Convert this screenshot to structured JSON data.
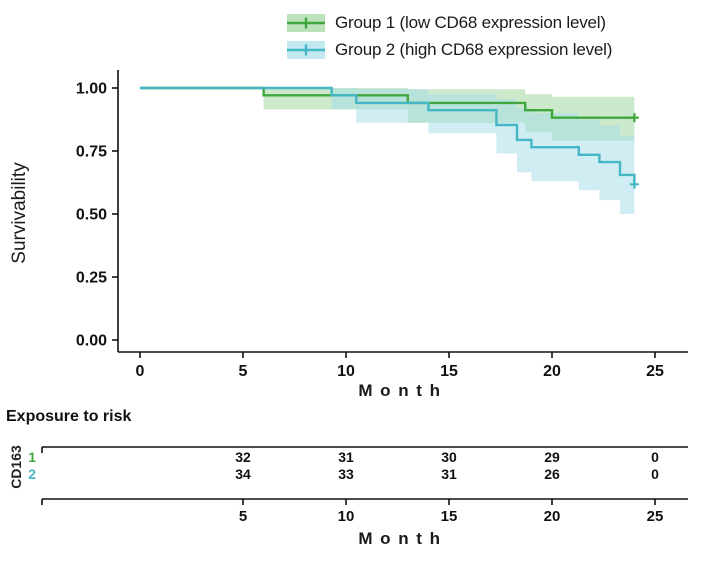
{
  "chart_data": {
    "type": "line",
    "subtype": "kaplan-meier-step-with-confidence-bands",
    "title": "",
    "xlabel": "Month",
    "ylabel": "Survivability",
    "xlim": [
      0,
      25
    ],
    "ylim": [
      0,
      1
    ],
    "grid": false,
    "legend_position": "top",
    "x_ticks": [
      0,
      5,
      10,
      15,
      20,
      25
    ],
    "y_ticks": [
      {
        "v": 1.0,
        "label": "1.00"
      },
      {
        "v": 0.75,
        "label": "0.75"
      },
      {
        "v": 0.5,
        "label": "0.50"
      },
      {
        "v": 0.25,
        "label": "0.25"
      },
      {
        "v": 0.0,
        "label": "0.00"
      }
    ],
    "series": [
      {
        "name": "group-1",
        "label": "Group 1 (low CD68 expression level)",
        "color": "#3fa73c",
        "band_color": "#8fce8f",
        "band_opacity": 0.45,
        "end": 24,
        "steps": [
          [
            0,
            1.0
          ],
          [
            6,
            0.971
          ],
          [
            13,
            0.941
          ],
          [
            18.7,
            0.912
          ],
          [
            20,
            0.882
          ]
        ],
        "censors": [
          [
            24,
            0.882
          ]
        ],
        "band": [
          {
            "t": 6,
            "lo": 0.915,
            "hi": 1.0
          },
          {
            "t": 13,
            "lo": 0.862,
            "hi": 0.995
          },
          {
            "t": 18.7,
            "lo": 0.825,
            "hi": 0.975
          },
          {
            "t": 20,
            "lo": 0.79,
            "hi": 0.965
          }
        ]
      },
      {
        "name": "group-2",
        "label": "Group 2 (high CD68 expression level)",
        "color": "#45b6c4",
        "band_color": "#a8dfe8",
        "band_opacity": 0.55,
        "end": 24,
        "steps": [
          [
            0,
            1.0
          ],
          [
            9.3,
            0.971
          ],
          [
            10.5,
            0.941
          ],
          [
            14,
            0.912
          ],
          [
            17.3,
            0.853
          ],
          [
            18.3,
            0.794
          ],
          [
            19,
            0.765
          ],
          [
            21.3,
            0.735
          ],
          [
            22.3,
            0.706
          ],
          [
            23.3,
            0.655
          ],
          [
            24,
            0.618
          ]
        ],
        "censors": [
          [
            24,
            0.618
          ]
        ],
        "band": [
          {
            "t": 9.3,
            "lo": 0.915,
            "hi": 1.0
          },
          {
            "t": 10.5,
            "lo": 0.862,
            "hi": 0.995
          },
          {
            "t": 14,
            "lo": 0.82,
            "hi": 0.975
          },
          {
            "t": 17.3,
            "lo": 0.74,
            "hi": 0.955
          },
          {
            "t": 18.3,
            "lo": 0.665,
            "hi": 0.92
          },
          {
            "t": 19,
            "lo": 0.63,
            "hi": 0.9
          },
          {
            "t": 21.3,
            "lo": 0.595,
            "hi": 0.875
          },
          {
            "t": 22.3,
            "lo": 0.555,
            "hi": 0.85
          },
          {
            "t": 23.3,
            "lo": 0.5,
            "hi": 0.81
          },
          {
            "t": 24,
            "lo": 0.465,
            "hi": 0.775
          }
        ]
      }
    ],
    "risk_table": {
      "title": "Exposure to risk",
      "group_label": "CD163",
      "axis_label": "Month",
      "axis_ticks": [
        5,
        10,
        15,
        20,
        25
      ],
      "columns_months": [
        5,
        10,
        15,
        20,
        25
      ],
      "rows": [
        {
          "name": "1",
          "color": "#3fa73c",
          "counts": [
            "32",
            "31",
            "30",
            "29",
            "0"
          ]
        },
        {
          "name": "2",
          "color": "#45b6c4",
          "counts": [
            "34",
            "33",
            "31",
            "26",
            "0"
          ]
        }
      ]
    }
  }
}
